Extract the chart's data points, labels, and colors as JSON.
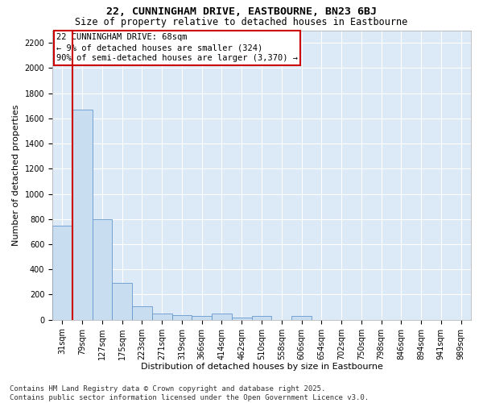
{
  "title": "22, CUNNINGHAM DRIVE, EASTBOURNE, BN23 6BJ",
  "subtitle": "Size of property relative to detached houses in Eastbourne",
  "xlabel": "Distribution of detached houses by size in Eastbourne",
  "ylabel": "Number of detached properties",
  "bar_color": "#c9ddf0",
  "bar_edge_color": "#6699cc",
  "annotation_line_color": "#cc0000",
  "plot_bg_color": "#dce9f6",
  "fig_bg_color": "#ffffff",
  "grid_color": "#ffffff",
  "bins": [
    "31sqm",
    "79sqm",
    "127sqm",
    "175sqm",
    "223sqm",
    "271sqm",
    "319sqm",
    "366sqm",
    "414sqm",
    "462sqm",
    "510sqm",
    "558sqm",
    "606sqm",
    "654sqm",
    "702sqm",
    "750sqm",
    "798sqm",
    "846sqm",
    "894sqm",
    "941sqm",
    "989sqm"
  ],
  "values": [
    750,
    1670,
    800,
    290,
    110,
    50,
    35,
    30,
    50,
    20,
    30,
    0,
    30,
    0,
    0,
    0,
    0,
    0,
    0,
    0,
    0
  ],
  "red_line_x": 0.5,
  "annotation_text": "22 CUNNINGHAM DRIVE: 68sqm\n← 9% of detached houses are smaller (324)\n90% of semi-detached houses are larger (3,370) →",
  "footer": "Contains HM Land Registry data © Crown copyright and database right 2025.\nContains public sector information licensed under the Open Government Licence v3.0.",
  "ylim": [
    0,
    2300
  ],
  "yticks": [
    0,
    200,
    400,
    600,
    800,
    1000,
    1200,
    1400,
    1600,
    1800,
    2000,
    2200
  ],
  "title_fontsize": 9.5,
  "subtitle_fontsize": 8.5,
  "tick_fontsize": 7,
  "label_fontsize": 8,
  "footer_fontsize": 6.5,
  "annotation_fontsize": 7.5
}
